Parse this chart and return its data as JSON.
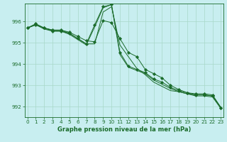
{
  "title": "Graphe pression niveau de la mer (hPa)",
  "background_color": "#c8eef0",
  "grid_color": "#a8d8c8",
  "line_color": "#1a6b2a",
  "xlim": [
    -0.3,
    23.3
  ],
  "ylim": [
    991.5,
    996.85
  ],
  "yticks": [
    992,
    993,
    994,
    995,
    996
  ],
  "xticks": [
    0,
    1,
    2,
    3,
    4,
    5,
    6,
    7,
    8,
    9,
    10,
    11,
    12,
    13,
    14,
    15,
    16,
    17,
    18,
    19,
    20,
    21,
    22,
    23
  ],
  "series": [
    [
      995.7,
      995.9,
      995.7,
      995.6,
      995.6,
      995.5,
      995.3,
      995.1,
      995.05,
      996.05,
      995.95,
      995.2,
      994.55,
      994.35,
      993.75,
      993.55,
      993.35,
      993.0,
      992.8,
      992.65,
      992.6,
      992.6,
      992.55,
      991.95
    ],
    [
      995.7,
      995.85,
      995.7,
      995.6,
      995.6,
      995.45,
      995.2,
      994.95,
      994.95,
      996.45,
      996.7,
      994.9,
      994.35,
      993.8,
      993.5,
      993.15,
      992.95,
      992.75,
      992.7,
      992.6,
      992.55,
      992.55,
      992.5,
      991.95
    ],
    [
      995.7,
      995.85,
      995.7,
      995.55,
      995.55,
      995.45,
      995.2,
      994.95,
      995.85,
      996.7,
      996.8,
      994.55,
      993.9,
      993.75,
      993.6,
      993.3,
      993.15,
      992.9,
      992.75,
      992.65,
      992.55,
      992.55,
      992.5,
      991.95
    ],
    [
      995.7,
      995.85,
      995.65,
      995.55,
      995.55,
      995.4,
      995.15,
      994.9,
      995.75,
      996.65,
      996.8,
      994.45,
      993.85,
      993.7,
      993.55,
      993.25,
      993.05,
      992.85,
      992.7,
      992.6,
      992.5,
      992.5,
      992.45,
      991.9
    ]
  ],
  "marker_series": [
    0,
    2
  ],
  "marker": "D",
  "markersize": 2.2,
  "linewidth": 0.7,
  "title_fontsize": 6.0,
  "tick_fontsize": 5.2
}
